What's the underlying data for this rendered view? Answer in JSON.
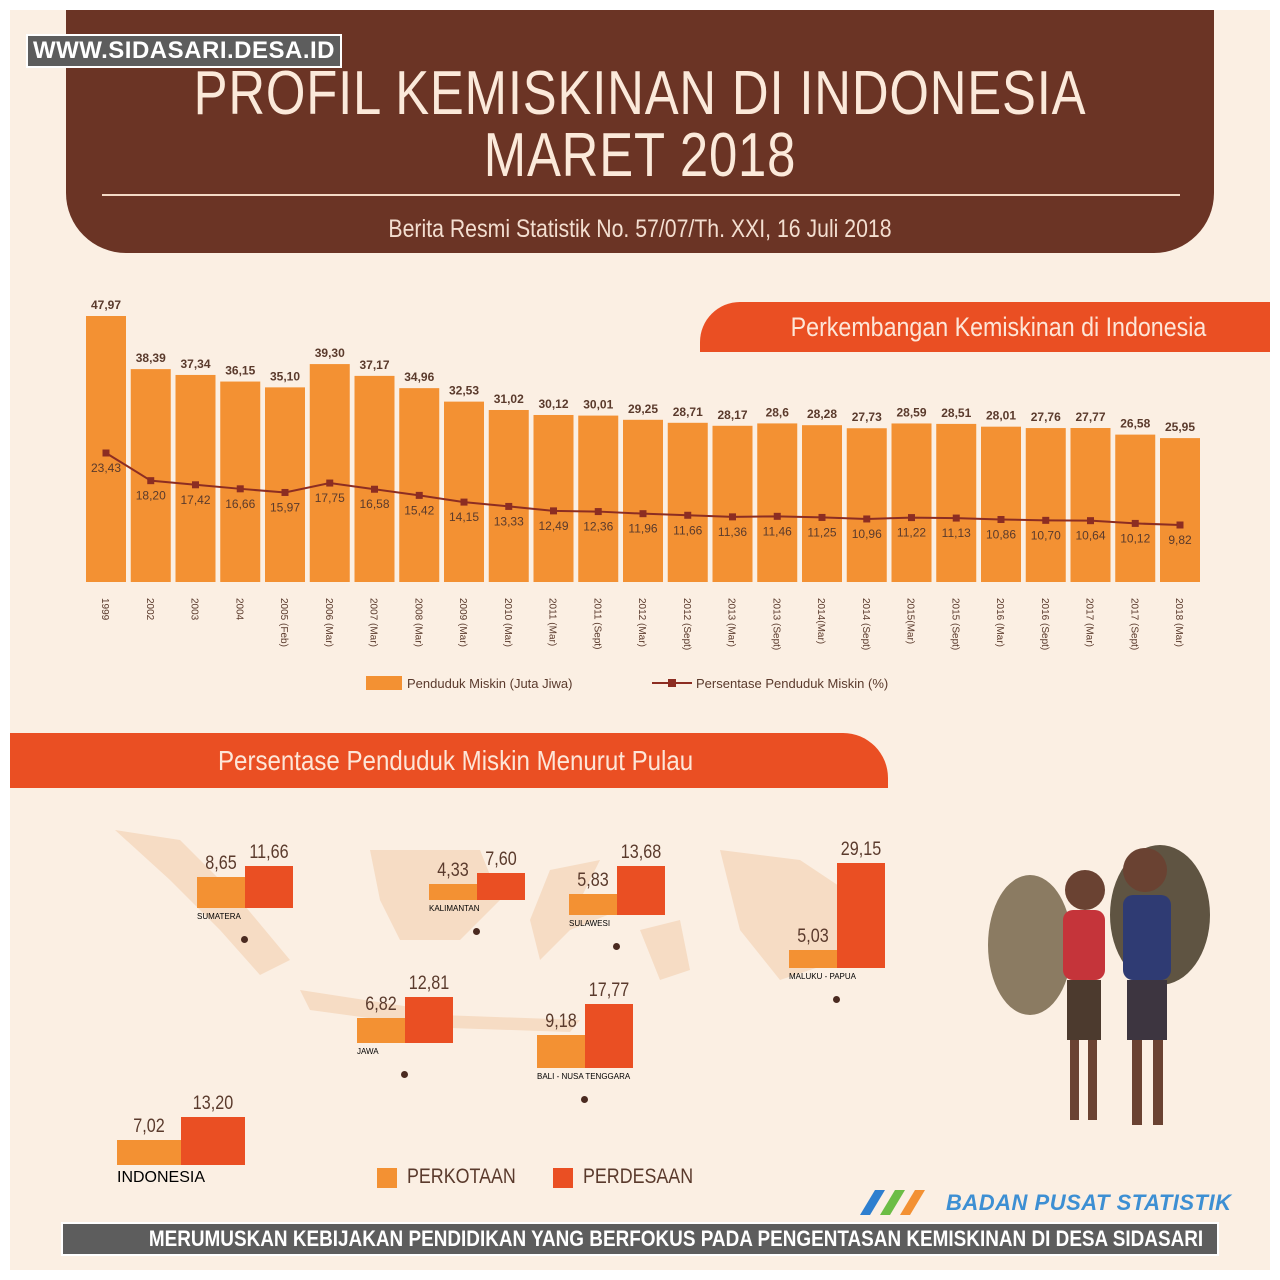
{
  "watermark_url": "WWW.SIDASARI.DESA.ID",
  "header": {
    "title_line1": "PROFIL KEMISKINAN DI INDONESIA",
    "title_line2": "MARET 2018",
    "subtitle": "Berita Resmi Statistik No. 57/07/Th. XXI, 16 Juli 2018"
  },
  "colors": {
    "header_bg": "#6b3425",
    "bar": "#f39133",
    "accent_red": "#ea4f23",
    "line": "#8c2d22",
    "background": "#fbefe3"
  },
  "chart_data": [
    {
      "type": "bar",
      "title": "Perkembangan Kemiskinan di Indonesia",
      "categories": [
        "1999",
        "2002",
        "2003",
        "2004",
        "2005 (Feb)",
        "2006 (Mar)",
        "2007 (Mar)",
        "2008 (Mar)",
        "2009 (Mar)",
        "2010 (Mar)",
        "2011 (Mar)",
        "2011 (Sept)",
        "2012 (Mar)",
        "2012 (Sept)",
        "2013 (Mar)",
        "2013 (Sept)",
        "2014(Mar)",
        "2014 (Sept)",
        "2015(Mar)",
        "2015 (Sept)",
        "2016 (Mar)",
        "2016 (Sept)",
        "2017 (Mar)",
        "2017 (Sept)",
        "2018 (Mar)"
      ],
      "series": [
        {
          "name": "Penduduk Miskin (Juta Jiwa)",
          "kind": "bar",
          "values": [
            47.97,
            38.39,
            37.34,
            36.15,
            35.1,
            39.3,
            37.17,
            34.96,
            32.53,
            31.02,
            30.12,
            30.01,
            29.25,
            28.71,
            28.17,
            28.6,
            28.28,
            27.73,
            28.59,
            28.51,
            28.01,
            27.76,
            27.77,
            26.58,
            25.95
          ],
          "labels": [
            "47,97",
            "38,39",
            "37,34",
            "36,15",
            "35,10",
            "39,30",
            "37,17",
            "34,96",
            "32,53",
            "31,02",
            "30,12",
            "30,01",
            "29,25",
            "28,71",
            "28,17",
            "28,6",
            "28,28",
            "27,73",
            "28,59",
            "28,51",
            "28,01",
            "27,76",
            "27,77",
            "26,58",
            "25,95"
          ]
        },
        {
          "name": "Persentase Penduduk Miskin (%)",
          "kind": "line",
          "values": [
            23.43,
            18.2,
            17.42,
            16.66,
            15.97,
            17.75,
            16.58,
            15.42,
            14.15,
            13.33,
            12.49,
            12.36,
            11.96,
            11.66,
            11.36,
            11.46,
            11.25,
            10.96,
            11.22,
            11.13,
            10.86,
            10.7,
            10.64,
            10.12,
            9.82
          ],
          "labels": [
            "23,43",
            "18,20",
            "17,42",
            "16,66",
            "15,97",
            "17,75",
            "16,58",
            "15,42",
            "14,15",
            "13,33",
            "12,49",
            "12,36",
            "11,96",
            "11,66",
            "11,36",
            "11,46",
            "11,25",
            "10,96",
            "11,22",
            "11,13",
            "10,86",
            "10,70",
            "10,64",
            "10,12",
            "9,82"
          ]
        }
      ],
      "legend_position": "bottom",
      "grid": false
    },
    {
      "type": "bar",
      "title": "Persentase Penduduk Miskin Menurut Pulau",
      "categories": [
        "SUMATERA",
        "KALIMANTAN",
        "SULAWESI",
        "MALUKU - PAPUA",
        "JAWA",
        "BALI - NUSA TENGGARA",
        "INDONESIA"
      ],
      "series": [
        {
          "name": "PERKOTAAN",
          "values": [
            8.65,
            4.33,
            5.83,
            5.03,
            6.82,
            9.18,
            7.02
          ],
          "labels": [
            "8,65",
            "4,33",
            "5,83",
            "5,03",
            "6,82",
            "9,18",
            "7,02"
          ]
        },
        {
          "name": "PERDESAAN",
          "values": [
            11.66,
            7.6,
            13.68,
            29.15,
            12.81,
            17.77,
            13.2
          ],
          "labels": [
            "11,66",
            "7,60",
            "13,68",
            "29,15",
            "12,81",
            "17,77",
            "13,20"
          ]
        }
      ],
      "legend_position": "bottom"
    }
  ],
  "footer": {
    "logo_text": "BADAN PUSAT STATISTIK",
    "caption": "MERUMUSKAN KEBIJAKAN PENDIDIKAN YANG BERFOKUS PADA PENGENTASAN KEMISKINAN DI DESA SIDASARI"
  }
}
